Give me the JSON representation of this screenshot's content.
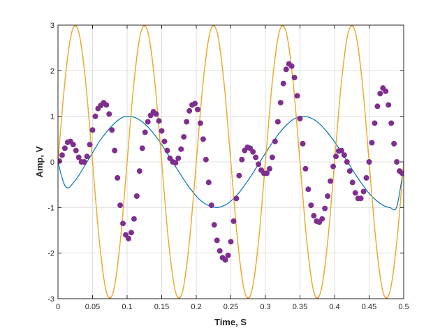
{
  "chart_data": {
    "type": "line",
    "title": "",
    "xlabel": "Time, S",
    "ylabel": "Amp, V",
    "xlim": [
      0,
      0.5
    ],
    "ylim": [
      -3,
      3
    ],
    "grid": true,
    "legend": "none",
    "x_ticks": [
      0,
      0.05,
      0.1,
      0.15,
      0.2,
      0.25,
      0.3,
      0.35,
      0.4,
      0.45,
      0.5
    ],
    "x_tick_labels": [
      "0",
      "0.05",
      "0.1",
      "0.15",
      "0.2",
      "0.25",
      "0.3",
      "0.35",
      "0.4",
      "0.45",
      "0.5"
    ],
    "y_ticks": [
      -3,
      -2,
      -1,
      0,
      1,
      2,
      3
    ],
    "y_tick_labels": [
      "-3",
      "-2",
      "-1",
      "0",
      "1",
      "2",
      "3"
    ],
    "series": [
      {
        "style": "line",
        "color": "#0072BD",
        "x": [
          0,
          0.005,
          0.01,
          0.015,
          0.02,
          0.03,
          0.04,
          0.05,
          0.06,
          0.07,
          0.08,
          0.09,
          0.1,
          0.11,
          0.12,
          0.13,
          0.14,
          0.15,
          0.16,
          0.17,
          0.18,
          0.19,
          0.2,
          0.21,
          0.22,
          0.23,
          0.24,
          0.25,
          0.26,
          0.27,
          0.28,
          0.29,
          0.3,
          0.31,
          0.32,
          0.33,
          0.34,
          0.35,
          0.36,
          0.37,
          0.38,
          0.39,
          0.4,
          0.41,
          0.42,
          0.43,
          0.44,
          0.45,
          0.46,
          0.47,
          0.48,
          0.49,
          0.5
        ],
        "y": [
          0,
          -0.3,
          -0.52,
          -0.57,
          -0.5,
          -0.3,
          -0.05,
          0.2,
          0.45,
          0.65,
          0.82,
          0.95,
          1.0,
          0.98,
          0.9,
          0.77,
          0.59,
          0.38,
          0.14,
          -0.1,
          -0.34,
          -0.56,
          -0.75,
          -0.89,
          -0.97,
          -1.0,
          -0.96,
          -0.86,
          -0.71,
          -0.51,
          -0.29,
          -0.05,
          0.19,
          0.42,
          0.63,
          0.8,
          0.93,
          0.99,
          0.99,
          0.93,
          0.81,
          0.64,
          0.44,
          0.21,
          -0.03,
          -0.27,
          -0.49,
          -0.69,
          -0.84,
          -0.95,
          -1.0,
          -0.98,
          -0.1
        ]
      },
      {
        "style": "line",
        "color": "#D95319",
        "x": [
          0,
          0.01,
          0.02,
          0.03,
          0.04,
          0.05,
          0.06,
          0.07,
          0.08,
          0.09,
          0.1,
          0.11,
          0.12,
          0.13,
          0.14,
          0.15,
          0.16,
          0.17,
          0.18,
          0.19,
          0.2,
          0.21,
          0.22,
          0.23,
          0.24,
          0.25,
          0.26,
          0.27,
          0.28,
          0.29,
          0.3,
          0.31,
          0.32,
          0.33,
          0.34,
          0.35,
          0.36,
          0.37,
          0.38,
          0.39,
          0.4,
          0.41,
          0.42,
          0.43,
          0.44,
          0.45,
          0.46,
          0.47,
          0.48,
          0.49,
          0.5
        ],
        "y": [
          0,
          1.76,
          2.85,
          2.85,
          1.76,
          0,
          -1.76,
          -2.85,
          -2.85,
          -1.76,
          0,
          1.76,
          2.85,
          2.85,
          1.76,
          0,
          -1.76,
          -2.85,
          -2.85,
          -1.76,
          0,
          1.76,
          2.85,
          2.85,
          1.76,
          0,
          -1.76,
          -2.85,
          -2.85,
          -1.76,
          0,
          1.76,
          2.85,
          2.85,
          1.76,
          0,
          -1.76,
          -2.85,
          -2.85,
          -1.76,
          0,
          1.76,
          2.85,
          2.85,
          1.76,
          0,
          -1.76,
          -2.85,
          -2.85,
          -1.76,
          0
        ]
      },
      {
        "style": "line",
        "color": "#EDB120",
        "x": [
          0,
          0.00833,
          0.01667,
          0.025,
          0.03333,
          0.04167,
          0.05,
          0.05833,
          0.06667,
          0.075,
          0.08333,
          0.09167,
          0.1,
          0.10833,
          0.11667,
          0.125,
          0.13333,
          0.14167,
          0.15,
          0.15833,
          0.16667,
          0.175,
          0.18333,
          0.19167,
          0.2,
          0.20833,
          0.21667,
          0.225,
          0.23333,
          0.24167,
          0.25,
          0.25833,
          0.26667,
          0.275,
          0.28333,
          0.29167,
          0.3,
          0.30833,
          0.31667,
          0.325,
          0.33333,
          0.34167,
          0.35,
          0.35833,
          0.36667,
          0.375,
          0.38333,
          0.39167,
          0.4,
          0.40833,
          0.41667,
          0.425,
          0.43333,
          0.44167,
          0.45,
          0.45833,
          0.46667,
          0.475,
          0.48333,
          0.49167,
          0.5
        ],
        "y": [
          0,
          1.5,
          2.6,
          3.0,
          2.6,
          1.5,
          0,
          -1.5,
          -2.6,
          -3.0,
          -2.6,
          -1.5,
          0,
          1.5,
          2.6,
          3.0,
          2.6,
          1.5,
          0,
          -1.5,
          -2.6,
          -3.0,
          -2.6,
          -1.5,
          0,
          1.5,
          2.6,
          3.0,
          2.6,
          1.5,
          0,
          -1.5,
          -2.6,
          -3.0,
          -2.6,
          -1.5,
          0,
          1.5,
          2.6,
          3.0,
          2.6,
          1.5,
          0,
          -1.5,
          -2.6,
          -3.0,
          -2.6,
          -1.5,
          0,
          1.5,
          2.6,
          3.0,
          2.6,
          1.5,
          0,
          -1.5,
          -2.6,
          -3.0,
          -2.6,
          -1.5,
          0
        ]
      },
      {
        "style": "scatter",
        "color": "#7E2F8E",
        "x": [
          0.002,
          0.006,
          0.01,
          0.014,
          0.018,
          0.022,
          0.026,
          0.03,
          0.034,
          0.038,
          0.042,
          0.046,
          0.05,
          0.054,
          0.058,
          0.062,
          0.066,
          0.07,
          0.074,
          0.078,
          0.082,
          0.086,
          0.09,
          0.094,
          0.098,
          0.102,
          0.106,
          0.11,
          0.114,
          0.118,
          0.122,
          0.126,
          0.13,
          0.134,
          0.138,
          0.142,
          0.146,
          0.15,
          0.154,
          0.158,
          0.162,
          0.166,
          0.17,
          0.174,
          0.178,
          0.182,
          0.186,
          0.19,
          0.194,
          0.198,
          0.202,
          0.206,
          0.21,
          0.214,
          0.218,
          0.222,
          0.226,
          0.23,
          0.234,
          0.238,
          0.242,
          0.246,
          0.25,
          0.254,
          0.258,
          0.262,
          0.266,
          0.27,
          0.274,
          0.278,
          0.282,
          0.286,
          0.29,
          0.294,
          0.298,
          0.302,
          0.306,
          0.31,
          0.314,
          0.318,
          0.322,
          0.326,
          0.33,
          0.334,
          0.338,
          0.342,
          0.346,
          0.35,
          0.354,
          0.358,
          0.362,
          0.366,
          0.37,
          0.374,
          0.378,
          0.382,
          0.386,
          0.39,
          0.394,
          0.398,
          0.402,
          0.406,
          0.41,
          0.414,
          0.418,
          0.422,
          0.426,
          0.43,
          0.434,
          0.438,
          0.442,
          0.446,
          0.45,
          0.454,
          0.458,
          0.462,
          0.466,
          0.47,
          0.474,
          0.478,
          0.482,
          0.486,
          0.49,
          0.494,
          0.498
        ],
        "y": [
          0.02,
          0.15,
          0.3,
          0.43,
          0.45,
          0.38,
          0.25,
          0.1,
          0.0,
          0.0,
          0.12,
          0.38,
          0.7,
          1.0,
          1.17,
          1.24,
          1.3,
          1.25,
          1.05,
          0.7,
          0.25,
          -0.35,
          -0.95,
          -1.35,
          -1.6,
          -1.68,
          -1.55,
          -1.25,
          -0.75,
          -0.2,
          0.3,
          0.65,
          0.88,
          1.02,
          1.1,
          1.05,
          0.9,
          0.68,
          0.45,
          0.25,
          0.08,
          0.0,
          -0.02,
          0.08,
          0.28,
          0.55,
          0.88,
          1.12,
          1.25,
          1.28,
          1.15,
          0.85,
          0.5,
          0.05,
          -0.45,
          -0.95,
          -1.38,
          -1.72,
          -1.95,
          -2.1,
          -2.15,
          -2.05,
          -1.75,
          -1.3,
          -0.8,
          -0.3,
          0.05,
          0.25,
          0.32,
          0.3,
          0.22,
          0.1,
          -0.05,
          -0.18,
          -0.25,
          -0.25,
          -0.15,
          0.1,
          0.45,
          0.88,
          1.3,
          1.72,
          2.03,
          2.15,
          2.1,
          1.85,
          1.45,
          0.95,
          0.4,
          -0.15,
          -0.6,
          -0.95,
          -1.18,
          -1.3,
          -1.32,
          -1.25,
          -1.02,
          -0.75,
          -0.42,
          -0.1,
          0.12,
          0.24,
          0.25,
          0.15,
          0.0,
          -0.2,
          -0.45,
          -0.68,
          -0.8,
          -0.8,
          -0.65,
          -0.35,
          0.0,
          0.42,
          0.85,
          1.22,
          1.5,
          1.62,
          1.55,
          1.25,
          0.85,
          0.4,
          0.0,
          -0.2,
          -0.25
        ]
      }
    ]
  }
}
